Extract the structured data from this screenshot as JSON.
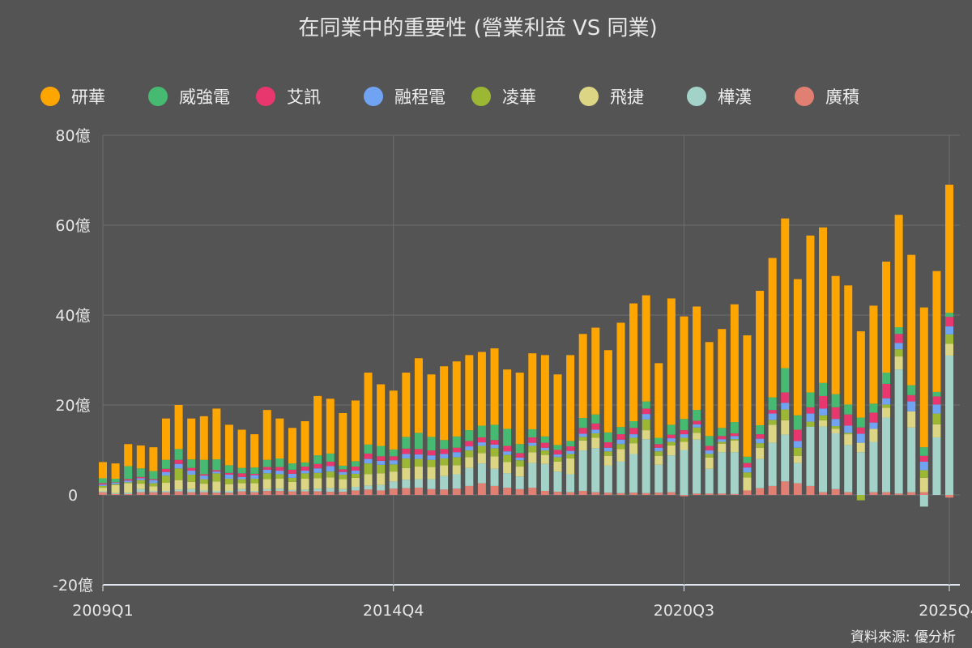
{
  "chart_data": {
    "type": "bar",
    "stacked": true,
    "title": "在同業中的重要性 (營業利益 VS 同業)",
    "source": "資料來源: 優分析",
    "ylim": [
      -20,
      80
    ],
    "yticks": [
      -20,
      0,
      20,
      40,
      60,
      80
    ],
    "ytick_labels": [
      "-20億",
      "0",
      "20億",
      "40億",
      "60億",
      "80億"
    ],
    "xtick_labels": [
      "2009Q1",
      "2014Q4",
      "2020Q3",
      "2025Q4"
    ],
    "xtick_index": [
      0,
      23,
      46,
      67
    ],
    "legend_position": "top",
    "start_quarter": "2009Q1",
    "end_quarter": "2025Q4",
    "series": [
      {
        "name": "廣積",
        "color": "#E07F72",
        "values": [
          0.6,
          0.2,
          0.2,
          0.6,
          0.6,
          0.6,
          0.8,
          0.6,
          0.6,
          0.5,
          0.5,
          0.8,
          0.6,
          0.9,
          0.9,
          0.8,
          0.8,
          0.8,
          0.7,
          0.7,
          1.0,
          1.2,
          1.0,
          1.4,
          1.5,
          1.6,
          1.3,
          1.2,
          1.4,
          2.0,
          2.6,
          2.0,
          1.6,
          1.3,
          1.6,
          0.9,
          0.7,
          0.6,
          0.9,
          0.6,
          0.5,
          0.4,
          0.5,
          0.4,
          0.5,
          0.6,
          -0.3,
          0.3,
          0.3,
          0.3,
          0.2,
          1.0,
          1.5,
          2.0,
          3.0,
          2.6,
          2.0,
          0.6,
          1.3,
          0.6,
          0,
          0.6,
          0.6,
          0.3,
          0.6,
          0.6,
          0,
          -0.6
        ]
      },
      {
        "name": "樺漢",
        "color": "#A3D3C8",
        "values": [
          0.2,
          0.2,
          0.3,
          0.7,
          0.3,
          0.3,
          0.4,
          0.7,
          0.4,
          0.4,
          0.4,
          0.5,
          0.3,
          0.4,
          0.5,
          0.3,
          0.4,
          0.6,
          0.8,
          0.6,
          0.8,
          0.9,
          1.2,
          1.6,
          1.9,
          1.9,
          2.2,
          3.0,
          3.2,
          4.0,
          4.4,
          3.8,
          3.2,
          2.8,
          5.5,
          6.0,
          4.5,
          4.0,
          9.0,
          9.8,
          6.0,
          7.0,
          8.6,
          12.0,
          6.2,
          8.2,
          10.0,
          12.0,
          5.5,
          9.2,
          9.3,
          0,
          6.5,
          9.6,
          10.4,
          4.5,
          13.2,
          14.6,
          12.4,
          10.5,
          9.5,
          11.2,
          16.6,
          27.6,
          14.4,
          -2.6,
          12.8,
          31.0
        ]
      },
      {
        "name": "飛捷",
        "color": "#DCD584",
        "values": [
          0.8,
          1.8,
          2.1,
          1.2,
          1.0,
          1.8,
          2.1,
          1.6,
          1.5,
          2.1,
          1.5,
          1.3,
          1.7,
          2.2,
          2.2,
          1.8,
          2.4,
          2.3,
          2.4,
          2.2,
          2.0,
          2.5,
          2.6,
          2.2,
          2.6,
          2.8,
          2.7,
          2.4,
          2.0,
          2.4,
          2.3,
          2.8,
          2.5,
          2.2,
          2.4,
          2.0,
          2.2,
          3.5,
          2.2,
          2.3,
          2.2,
          2.8,
          2.4,
          2.0,
          2.0,
          2.2,
          1.8,
          1.5,
          2.5,
          1.9,
          2.6,
          2.9,
          2.5,
          4.0,
          3.2,
          1.6,
          0,
          1.4,
          1.0,
          2.4,
          2.1,
          2.9,
          2.2,
          2.9,
          3.6,
          3.2,
          2.9,
          2.6
        ]
      },
      {
        "name": "凌華",
        "color": "#9BB733",
        "values": [
          0.4,
          0.2,
          0.2,
          0.8,
          0.7,
          1.6,
          2.6,
          1.6,
          1.0,
          1.8,
          1.2,
          0.9,
          1.0,
          1.3,
          1.0,
          0.9,
          1.2,
          1.2,
          1.3,
          1.0,
          0.9,
          2.4,
          1.9,
          1.6,
          2.1,
          1.7,
          1.6,
          1.5,
          1.8,
          1.5,
          1.6,
          1.8,
          1.6,
          1.4,
          1.4,
          1.0,
          1.0,
          1.0,
          0.8,
          1.0,
          1.0,
          1.1,
          1.2,
          2.4,
          1.0,
          0.8,
          0.9,
          1.2,
          0.8,
          0.4,
          0.3,
          1.1,
          1.0,
          1.1,
          2.4,
          1.8,
          1.1,
          1.1,
          0.6,
          0.3,
          -1.2,
          0,
          0.7,
          1.6,
          0,
          1.7,
          2.4,
          2.1
        ]
      },
      {
        "name": "融程電",
        "color": "#70A3F2",
        "values": [
          0.3,
          0.3,
          0.4,
          0.4,
          0.7,
          0.8,
          1.0,
          0.9,
          0.8,
          0.4,
          0.9,
          0.5,
          0.8,
          0.8,
          0.8,
          0.9,
          0.6,
          1.0,
          1.2,
          0.6,
          0.7,
          1.0,
          0.9,
          0.9,
          1.0,
          1.0,
          1.0,
          1.0,
          1.1,
          0.9,
          0.8,
          0.8,
          0.8,
          0.6,
          0.7,
          0.6,
          0.6,
          0.7,
          0.7,
          0.8,
          0.8,
          1.0,
          0.8,
          1.2,
          0.8,
          0.8,
          0.8,
          0.7,
          0.8,
          0.6,
          0.7,
          1.1,
          1.0,
          1.4,
          1.5,
          1.5,
          1.8,
          1.5,
          1.6,
          1.6,
          2.0,
          1.4,
          1.4,
          1.4,
          2.2,
          1.9,
          2.0,
          1.8
        ]
      },
      {
        "name": "艾訊",
        "color": "#E8376E",
        "values": [
          0.3,
          0.1,
          0.3,
          0.3,
          0.2,
          0.7,
          0.9,
          0.6,
          0.3,
          0.3,
          0.4,
          0.8,
          0.3,
          0.6,
          0.8,
          0.9,
          0.9,
          1.0,
          1.0,
          0.6,
          0.9,
          1.2,
          1.0,
          0.9,
          1.2,
          1.2,
          1.1,
          1.1,
          1.0,
          1.2,
          1.1,
          1.0,
          1.2,
          1.0,
          1.2,
          1.1,
          1.0,
          1.0,
          1.3,
          1.4,
          1.2,
          1.2,
          1.4,
          1.2,
          0.8,
          0.8,
          0.9,
          0.8,
          1.0,
          0.7,
          0.6,
          1.0,
          1.0,
          0.8,
          2.3,
          2.5,
          1.4,
          2.8,
          2.6,
          2.5,
          1.4,
          2.2,
          3.2,
          2.0,
          1.4,
          1.3,
          1.8,
          2.1
        ]
      },
      {
        "name": "威強電",
        "color": "#45BA70",
        "values": [
          1.1,
          0.8,
          2.9,
          1.9,
          1.8,
          2.0,
          2.4,
          1.9,
          3.2,
          2.4,
          1.7,
          1.2,
          1.4,
          1.6,
          1.9,
          1.4,
          0.9,
          1.9,
          1.8,
          0.8,
          1.2,
          2.0,
          2.3,
          1.5,
          2.6,
          3.6,
          3.0,
          2.0,
          2.5,
          2.4,
          2.6,
          3.4,
          3.8,
          2.0,
          1.8,
          1.4,
          1.1,
          1.2,
          2.2,
          2.0,
          2.2,
          1.6,
          1.5,
          1.6,
          1.4,
          2.2,
          2.5,
          2.4,
          2.2,
          1.8,
          2.5,
          1.4,
          2.0,
          2.8,
          5.4,
          3.2,
          3.3,
          2.9,
          2.9,
          2.2,
          2.2,
          2.0,
          2.5,
          1.5,
          2.2,
          1.9,
          1.0,
          0.9
        ]
      },
      {
        "name": "研華",
        "color": "#FFA500",
        "values": [
          3.6,
          3.4,
          4.9,
          5.1,
          5.3,
          9.2,
          9.8,
          9.1,
          9.7,
          11.3,
          9.0,
          8.5,
          7.4,
          11.1,
          8.9,
          7.9,
          9.2,
          13.2,
          12.2,
          11.7,
          13.5,
          16.0,
          13.7,
          13.1,
          14.3,
          16.6,
          13.9,
          16.4,
          16.7,
          16.7,
          16.4,
          17.0,
          13.2,
          15.9,
          16.9,
          18.1,
          15.7,
          19.1,
          18.7,
          19.3,
          18.3,
          23.2,
          26.2,
          23.6,
          16.6,
          28.1,
          22.8,
          23.0,
          20.9,
          22.0,
          26.2,
          27.0,
          29.9,
          31.0,
          33.3,
          30.3,
          34.9,
          34.6,
          26.3,
          26.5,
          19.2,
          21.8,
          24.7,
          25.0,
          29.0,
          31.1,
          26.9,
          28.5
        ]
      }
    ]
  }
}
